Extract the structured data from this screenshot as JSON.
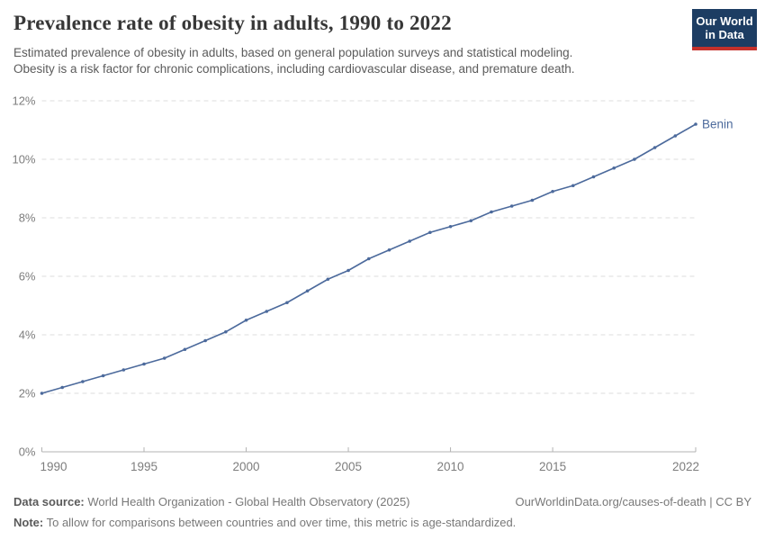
{
  "header": {
    "title": "Prevalence rate of obesity in adults, 1990 to 2022",
    "subtitle_lines": [
      "Estimated prevalence of obesity in adults, based on general population surveys and statistical modeling.",
      "Obesity is a risk factor for chronic complications, including cardiovascular disease, and premature death."
    ],
    "logo": {
      "line1": "Our World",
      "line2": "in Data",
      "bg_color": "#1d3d63",
      "accent_color": "#c5312b"
    }
  },
  "chart_data": {
    "type": "line",
    "title": "Prevalence rate of obesity in adults, 1990 to 2022",
    "xlabel": "",
    "ylabel": "",
    "ylim": [
      0,
      12
    ],
    "yticks": [
      0,
      2,
      4,
      6,
      8,
      10,
      12
    ],
    "ytick_labels": [
      "0%",
      "2%",
      "4%",
      "6%",
      "8%",
      "10%",
      "12%"
    ],
    "xticks": [
      1990,
      1995,
      2000,
      2005,
      2010,
      2015,
      2022
    ],
    "xtick_labels": [
      "1990",
      "1995",
      "2000",
      "2005",
      "2010",
      "2015",
      "2022"
    ],
    "grid": "horizontal-dashed",
    "legend_position": "line-end-label",
    "x": [
      1990,
      1991,
      1992,
      1993,
      1994,
      1995,
      1996,
      1997,
      1998,
      1999,
      2000,
      2001,
      2002,
      2003,
      2004,
      2005,
      2006,
      2007,
      2008,
      2009,
      2010,
      2011,
      2012,
      2013,
      2014,
      2015,
      2016,
      2017,
      2018,
      2019,
      2020,
      2021,
      2022
    ],
    "series": [
      {
        "name": "Benin",
        "color": "#4c6a9c",
        "values": [
          2.0,
          2.2,
          2.4,
          2.6,
          2.8,
          3.0,
          3.2,
          3.5,
          3.8,
          4.1,
          4.5,
          4.8,
          5.1,
          5.5,
          5.9,
          6.2,
          6.6,
          6.9,
          7.2,
          7.5,
          7.7,
          7.9,
          8.2,
          8.4,
          8.6,
          8.9,
          9.1,
          9.4,
          9.7,
          10.0,
          10.4,
          10.8,
          11.2
        ]
      }
    ],
    "colors": {
      "gridline": "#dedede",
      "axis": "#b3b3b3",
      "tick_label": "#7d7d7d"
    }
  },
  "footer": {
    "data_source_label": "Data source:",
    "data_source_text": " World Health Organization - Global Health Observatory (2025)",
    "link": "OurWorldinData.org/causes-of-death | CC BY",
    "note_label": "Note:",
    "note_text": " To allow for comparisons between countries and over time, this metric is age-standardized."
  }
}
